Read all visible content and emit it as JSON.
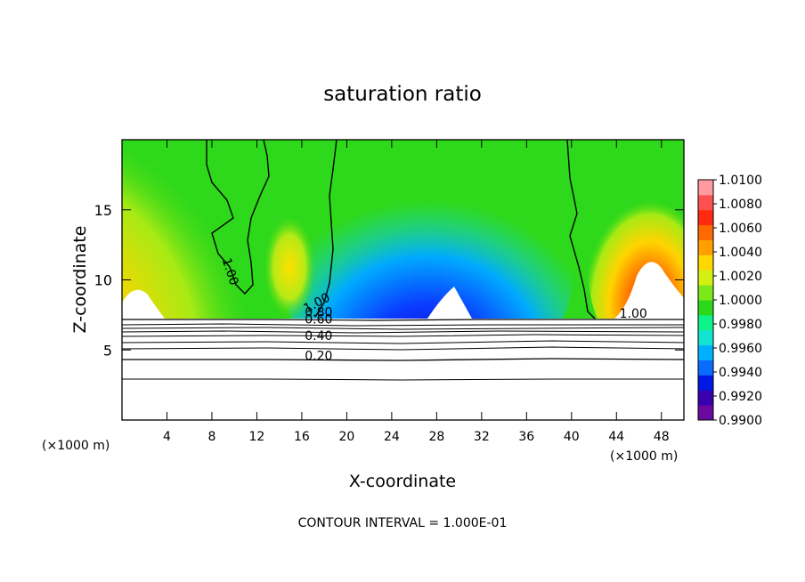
{
  "chart_data": {
    "type": "heatmap",
    "title": "saturation ratio",
    "xlabel": "X-coordinate",
    "ylabel": "Z-coordinate",
    "x_unit_left": "(×1000 m)",
    "x_unit_right": "(×1000 m)",
    "xlim": [
      0,
      50
    ],
    "ylim": [
      0,
      20
    ],
    "x_ticks": [
      4,
      8,
      12,
      16,
      20,
      24,
      28,
      32,
      36,
      40,
      44,
      48
    ],
    "y_ticks": [
      5,
      10,
      15
    ],
    "footer": "CONTOUR INTERVAL = 1.000E-01",
    "colorbar": {
      "min": 0.99,
      "max": 1.01,
      "tick_labels": [
        "1.0100",
        "1.0080",
        "1.0060",
        "1.0040",
        "1.0020",
        "1.0000",
        "0.9980",
        "0.9960",
        "0.9940",
        "0.9920",
        "0.9900"
      ],
      "colors": [
        "#6a0aa0",
        "#3a00b0",
        "#0018e6",
        "#0a6cff",
        "#00b0ff",
        "#13e3d0",
        "#0ef28a",
        "#2ad91a",
        "#7be81a",
        "#d4ef14",
        "#ffd800",
        "#ffa000",
        "#ff6a00",
        "#ff2a10",
        "#ff5050",
        "#ff9aa0"
      ]
    },
    "contour_labels": [
      {
        "text": "1.00",
        "x": 9.3,
        "y": 10.5,
        "angle": 72
      },
      {
        "text": "1.00",
        "x": 17.5,
        "y": 8.1,
        "angle": -28
      },
      {
        "text": "1.00",
        "x": 45.5,
        "y": 7.3,
        "angle": 0
      },
      {
        "text": "0.80",
        "x": 17.5,
        "y": 7.4,
        "angle": 0
      },
      {
        "text": "0.60",
        "x": 17.5,
        "y": 6.9,
        "angle": 0
      },
      {
        "text": "0.40",
        "x": 17.5,
        "y": 5.7,
        "angle": 0
      },
      {
        "text": "0.20",
        "x": 17.5,
        "y": 4.3,
        "angle": 0
      }
    ],
    "cloud_base_km": 7.3
  }
}
